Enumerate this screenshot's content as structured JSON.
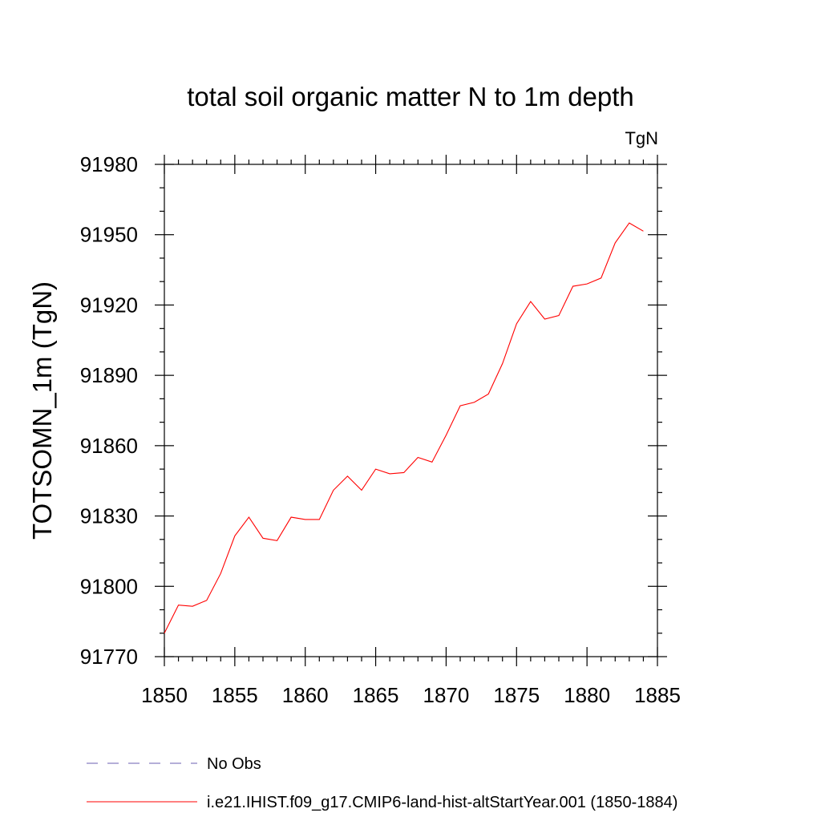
{
  "chart_data": {
    "type": "line",
    "title": "total soil organic matter N to 1m depth",
    "units": "TgN",
    "ylabel": "TOTSOMN_1m  (TgN)",
    "xlabel": "",
    "xlim": [
      1850,
      1885
    ],
    "ylim": [
      91770,
      91980
    ],
    "x_ticks": [
      1850,
      1855,
      1860,
      1865,
      1870,
      1875,
      1880,
      1885
    ],
    "y_ticks": [
      91770,
      91800,
      91830,
      91860,
      91890,
      91920,
      91950,
      91980
    ],
    "grid": false,
    "legend_position": "bottom",
    "series": [
      {
        "name": "No Obs",
        "color": "#6b5fb0",
        "dash": "dashed",
        "x": [],
        "values": []
      },
      {
        "name": "i.e21.IHIST.f09_g17.CMIP6-land-hist-altStartYear.001 (1850-1884)",
        "color": "#ff0000",
        "dash": "solid",
        "x": [
          1850,
          1851,
          1852,
          1853,
          1854,
          1855,
          1856,
          1857,
          1858,
          1859,
          1860,
          1861,
          1862,
          1863,
          1864,
          1865,
          1866,
          1867,
          1868,
          1869,
          1870,
          1871,
          1872,
          1873,
          1874,
          1875,
          1876,
          1877,
          1878,
          1879,
          1880,
          1881,
          1882,
          1883,
          1884
        ],
        "values": [
          91780,
          91792,
          91791.5,
          91794,
          91805.5,
          91821.5,
          91829.5,
          91820.5,
          91819.5,
          91829.5,
          91828.5,
          91828.5,
          91841,
          91847,
          91841,
          91850,
          91848,
          91848.5,
          91855,
          91853,
          91864.5,
          91877,
          91878.5,
          91882,
          91895,
          91912,
          91921.5,
          91914,
          91915.5,
          91928,
          91929,
          91931.5,
          91946.5,
          91955,
          91951.5
        ]
      }
    ]
  }
}
